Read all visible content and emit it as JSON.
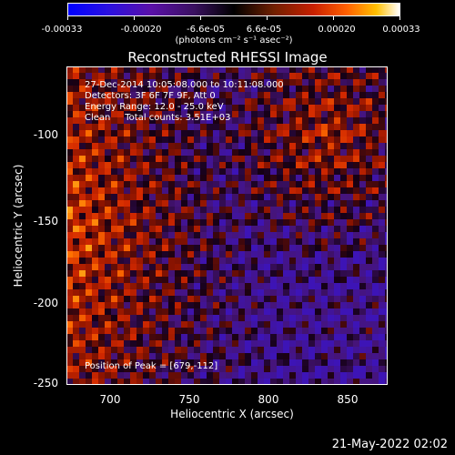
{
  "colorbar": {
    "ticks": [
      "-0.00033",
      "-0.00020",
      "-6.6e-05",
      "6.6e-05",
      "0.00020",
      "0.00033"
    ],
    "units": "(photons cm⁻² s⁻¹ asec⁻²)"
  },
  "title": "Reconstructed RHESSI Image",
  "info": {
    "time": "27-Dec-2014 10:05:08.000 to 10:11:08.000",
    "detectors": "Detectors: 3F 6F 7F 9F, Att 0",
    "energy": "Energy Range: 12.0 - 25.0 keV",
    "method": "Clean     Total counts: 3.51E+03",
    "peak": "Position of Peak = [679,-112]"
  },
  "chart_data": {
    "type": "heatmap",
    "title": "Reconstructed RHESSI Image",
    "xlabel": "Heliocentric X (arcsec)",
    "ylabel": "Heliocentric Y (arcsec)",
    "xlim": [
      677,
      869
    ],
    "ylim": [
      -252,
      -69
    ],
    "xticks": [
      "700",
      "750",
      "800",
      "850"
    ],
    "yticks": [
      "-100",
      "-150",
      "-200",
      "-250"
    ],
    "colorbar_range": [
      -0.00033,
      0.00033
    ],
    "peak_position": [
      679,
      -112
    ]
  },
  "footer": {
    "timestamp": "21-May-2022 02:02"
  }
}
